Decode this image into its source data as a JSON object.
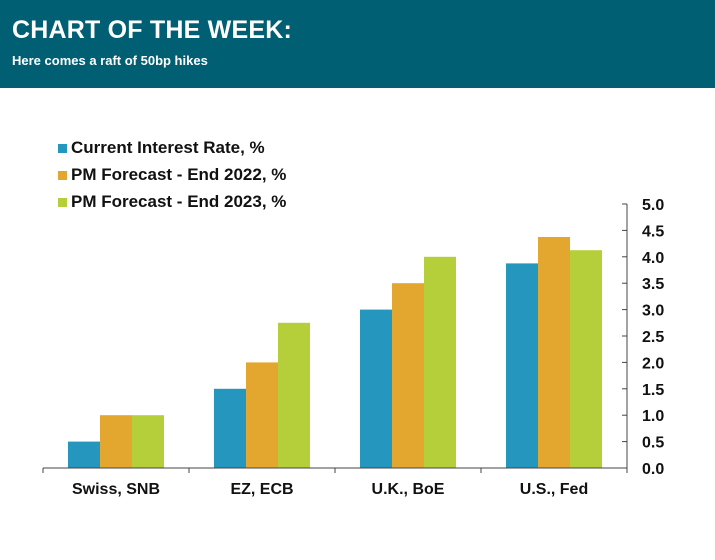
{
  "header": {
    "title": "CHART OF THE WEEK:",
    "subtitle": "Here comes a raft of 50bp hikes",
    "background": "#005f73"
  },
  "chart_data": {
    "type": "bar",
    "categories": [
      "Swiss, SNB",
      "EZ, ECB",
      "U.K., BoE",
      "U.S., Fed"
    ],
    "series": [
      {
        "name": "Current Interest Rate, %",
        "values": [
          0.5,
          1.5,
          3.0,
          3.875
        ],
        "color": "#2596be"
      },
      {
        "name": "PM Forecast - End 2022, %",
        "values": [
          1.0,
          2.0,
          3.5,
          4.375
        ],
        "color": "#e3a72f"
      },
      {
        "name": "PM Forecast - End 2023, %",
        "values": [
          1.0,
          2.75,
          4.0,
          4.125
        ],
        "color": "#b5cf3b"
      }
    ],
    "ylim": [
      0,
      5
    ],
    "yticks": [
      "0.0",
      "0.5",
      "1.0",
      "1.5",
      "2.0",
      "2.5",
      "3.0",
      "3.5",
      "4.0",
      "4.5",
      "5.0"
    ],
    "y_axis_side": "right",
    "legend_position": "top-left",
    "grid": false,
    "title": "",
    "xlabel": "",
    "ylabel": ""
  }
}
